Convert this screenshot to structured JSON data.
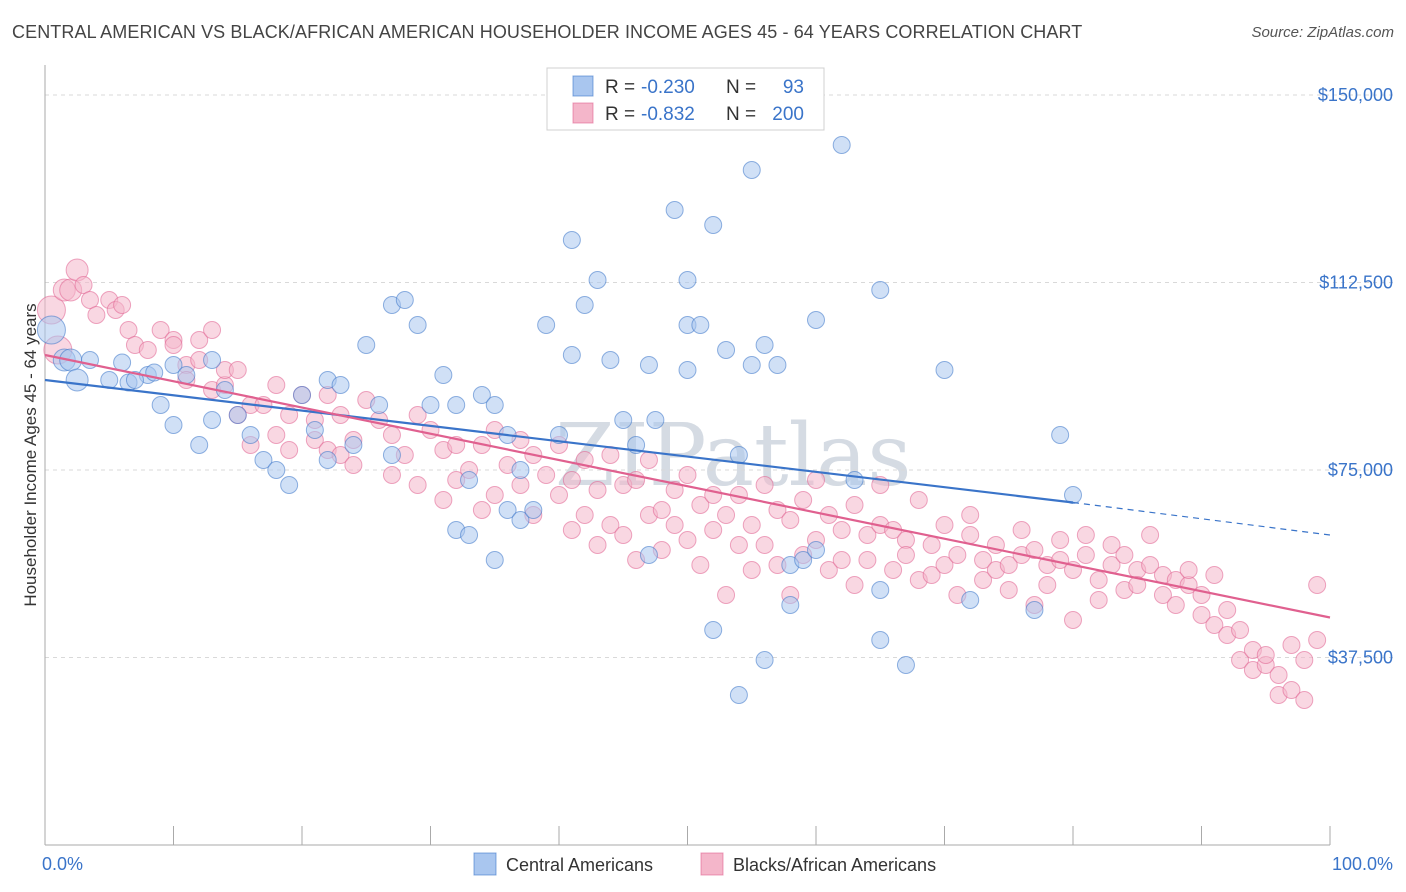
{
  "title": "CENTRAL AMERICAN VS BLACK/AFRICAN AMERICAN HOUSEHOLDER INCOME AGES 45 - 64 YEARS CORRELATION CHART",
  "source": "Source: ZipAtlas.com",
  "watermark": "ZIPatlas",
  "colors": {
    "blue": "#3a74c9",
    "blue_fill": "#a9c6ef",
    "pink": "#e0608f",
    "pink_fill": "#f4b6ca",
    "grid": "#d9d9d9"
  },
  "legend": {
    "rows": [
      {
        "r_label": "R =",
        "r_value": "-0.230",
        "n_label": "N =",
        "n_value": "93"
      },
      {
        "r_label": "R =",
        "r_value": "-0.832",
        "n_label": "N =",
        "n_value": "200"
      }
    ]
  },
  "chart_data": {
    "type": "scatter",
    "title": "CENTRAL AMERICAN VS BLACK/AFRICAN AMERICAN HOUSEHOLDER INCOME AGES 45 - 64 YEARS CORRELATION CHART",
    "xlabel": "",
    "ylabel": "Householder Income Ages 45 - 64 years",
    "xlim": [
      0,
      100
    ],
    "ylim": [
      0,
      155000
    ],
    "x_tick_labels": [
      "0.0%",
      "100.0%"
    ],
    "y_ticks": [
      37500,
      75000,
      112500,
      150000
    ],
    "y_tick_labels": [
      "$37,500",
      "$75,000",
      "$112,500",
      "$150,000"
    ],
    "grid": true,
    "legend_position": "top-center",
    "series": [
      {
        "name": "Central Americans",
        "color": "#3a74c9",
        "trend": {
          "x": [
            0,
            80
          ],
          "y": [
            93000,
            68500
          ],
          "dashed_to": [
            100,
            62000
          ]
        },
        "points": [
          [
            0.5,
            103000
          ],
          [
            1.5,
            97000
          ],
          [
            2,
            97000
          ],
          [
            2.5,
            93000
          ],
          [
            3.5,
            97000
          ],
          [
            5,
            93000
          ],
          [
            6,
            96500
          ],
          [
            6.5,
            92500
          ],
          [
            8,
            94000
          ],
          [
            7,
            93000
          ],
          [
            8.5,
            94500
          ],
          [
            9,
            88000
          ],
          [
            10,
            96000
          ],
          [
            11,
            94000
          ],
          [
            10,
            84000
          ],
          [
            12,
            80000
          ],
          [
            13,
            97000
          ],
          [
            13,
            85000
          ],
          [
            14,
            91000
          ],
          [
            15,
            86000
          ],
          [
            16,
            82000
          ],
          [
            17,
            77000
          ],
          [
            18,
            75000
          ],
          [
            19,
            72000
          ],
          [
            20,
            90000
          ],
          [
            21,
            83000
          ],
          [
            22,
            93000
          ],
          [
            22,
            77000
          ],
          [
            23,
            92000
          ],
          [
            24,
            80000
          ],
          [
            25,
            100000
          ],
          [
            26,
            88000
          ],
          [
            27,
            108000
          ],
          [
            27,
            78000
          ],
          [
            28,
            109000
          ],
          [
            29,
            104000
          ],
          [
            30,
            88000
          ],
          [
            31,
            94000
          ],
          [
            32,
            63000
          ],
          [
            32,
            88000
          ],
          [
            33,
            73000
          ],
          [
            33,
            62000
          ],
          [
            34,
            90000
          ],
          [
            35,
            88000
          ],
          [
            35,
            57000
          ],
          [
            36,
            67000
          ],
          [
            37,
            75000
          ],
          [
            37,
            65000
          ],
          [
            38,
            67000
          ],
          [
            39,
            104000
          ],
          [
            40,
            82000
          ],
          [
            41,
            121000
          ],
          [
            42,
            108000
          ],
          [
            43,
            113000
          ],
          [
            44,
            97000
          ],
          [
            45,
            85000
          ],
          [
            46,
            80000
          ],
          [
            47,
            96000
          ],
          [
            47,
            58000
          ],
          [
            49,
            127000
          ],
          [
            50,
            95000
          ],
          [
            50,
            113000
          ],
          [
            50,
            104000
          ],
          [
            51,
            104000
          ],
          [
            52,
            43000
          ],
          [
            52,
            124000
          ],
          [
            53,
            99000
          ],
          [
            54,
            78000
          ],
          [
            54,
            30000
          ],
          [
            55,
            135000
          ],
          [
            55,
            96000
          ],
          [
            56,
            37000
          ],
          [
            56,
            100000
          ],
          [
            57,
            96000
          ],
          [
            58,
            56000
          ],
          [
            58,
            48000
          ],
          [
            59,
            57000
          ],
          [
            60,
            59000
          ],
          [
            60,
            105000
          ],
          [
            62,
            140000
          ],
          [
            63,
            73000
          ],
          [
            65,
            111000
          ],
          [
            65,
            51000
          ],
          [
            65,
            41000
          ],
          [
            67,
            36000
          ],
          [
            70,
            95000
          ],
          [
            72,
            49000
          ],
          [
            77,
            47000
          ],
          [
            79,
            82000
          ],
          [
            80,
            70000
          ],
          [
            47.5,
            85000
          ],
          [
            41,
            98000
          ],
          [
            36,
            82000
          ]
        ]
      },
      {
        "name": "Blacks/African Americans",
        "color": "#e0608f",
        "trend": {
          "x": [
            0,
            100
          ],
          "y": [
            98000,
            45500
          ]
        },
        "points": [
          [
            0.5,
            107000
          ],
          [
            1,
            99000
          ],
          [
            1.5,
            111000
          ],
          [
            2,
            111000
          ],
          [
            2.5,
            115000
          ],
          [
            3,
            112000
          ],
          [
            3.5,
            109000
          ],
          [
            4,
            106000
          ],
          [
            5,
            109000
          ],
          [
            5.5,
            107000
          ],
          [
            6,
            108000
          ],
          [
            6.5,
            103000
          ],
          [
            7,
            100000
          ],
          [
            8,
            99000
          ],
          [
            9,
            103000
          ],
          [
            10,
            101000
          ],
          [
            10,
            100000
          ],
          [
            11,
            96000
          ],
          [
            11,
            93000
          ],
          [
            12,
            101000
          ],
          [
            12,
            97000
          ],
          [
            13,
            91000
          ],
          [
            13,
            103000
          ],
          [
            14,
            92000
          ],
          [
            14,
            95000
          ],
          [
            15,
            86000
          ],
          [
            15,
            95000
          ],
          [
            16,
            88000
          ],
          [
            16,
            80000
          ],
          [
            17,
            88000
          ],
          [
            18,
            92000
          ],
          [
            18,
            82000
          ],
          [
            19,
            86000
          ],
          [
            19,
            79000
          ],
          [
            20,
            90000
          ],
          [
            21,
            85000
          ],
          [
            21,
            81000
          ],
          [
            22,
            79000
          ],
          [
            22,
            90000
          ],
          [
            23,
            86000
          ],
          [
            23,
            78000
          ],
          [
            24,
            81000
          ],
          [
            24,
            76000
          ],
          [
            25,
            89000
          ],
          [
            26,
            85000
          ],
          [
            27,
            82000
          ],
          [
            27,
            74000
          ],
          [
            28,
            78000
          ],
          [
            29,
            86000
          ],
          [
            29,
            72000
          ],
          [
            30,
            83000
          ],
          [
            31,
            79000
          ],
          [
            31,
            69000
          ],
          [
            32,
            80000
          ],
          [
            32,
            73000
          ],
          [
            33,
            75000
          ],
          [
            34,
            80000
          ],
          [
            34,
            67000
          ],
          [
            35,
            70000
          ],
          [
            35,
            83000
          ],
          [
            36,
            76000
          ],
          [
            37,
            81000
          ],
          [
            37,
            72000
          ],
          [
            38,
            66000
          ],
          [
            38,
            78000
          ],
          [
            39,
            74000
          ],
          [
            40,
            80000
          ],
          [
            40,
            70000
          ],
          [
            41,
            63000
          ],
          [
            41,
            73000
          ],
          [
            42,
            77000
          ],
          [
            42,
            66000
          ],
          [
            43,
            71000
          ],
          [
            43,
            60000
          ],
          [
            44,
            78000
          ],
          [
            44,
            64000
          ],
          [
            45,
            72000
          ],
          [
            45,
            62000
          ],
          [
            46,
            73000
          ],
          [
            46,
            57000
          ],
          [
            47,
            77000
          ],
          [
            47,
            66000
          ],
          [
            48,
            67000
          ],
          [
            48,
            59000
          ],
          [
            49,
            71000
          ],
          [
            49,
            64000
          ],
          [
            50,
            74000
          ],
          [
            50,
            61000
          ],
          [
            51,
            68000
          ],
          [
            51,
            56000
          ],
          [
            52,
            70000
          ],
          [
            52,
            63000
          ],
          [
            53,
            66000
          ],
          [
            53,
            50000
          ],
          [
            54,
            70000
          ],
          [
            54,
            60000
          ],
          [
            55,
            64000
          ],
          [
            55,
            55000
          ],
          [
            56,
            72000
          ],
          [
            56,
            60000
          ],
          [
            57,
            67000
          ],
          [
            57,
            56000
          ],
          [
            58,
            65000
          ],
          [
            58,
            50000
          ],
          [
            59,
            69000
          ],
          [
            59,
            58000
          ],
          [
            60,
            61000
          ],
          [
            60,
            73000
          ],
          [
            61,
            66000
          ],
          [
            61,
            55000
          ],
          [
            62,
            63000
          ],
          [
            62,
            57000
          ],
          [
            63,
            68000
          ],
          [
            63,
            52000
          ],
          [
            64,
            62000
          ],
          [
            64,
            57000
          ],
          [
            65,
            64000
          ],
          [
            65,
            72000
          ],
          [
            66,
            63000
          ],
          [
            66,
            55000
          ],
          [
            67,
            61000
          ],
          [
            67,
            58000
          ],
          [
            68,
            69000
          ],
          [
            68,
            53000
          ],
          [
            69,
            60000
          ],
          [
            69,
            54000
          ],
          [
            70,
            64000
          ],
          [
            70,
            56000
          ],
          [
            71,
            58000
          ],
          [
            71,
            50000
          ],
          [
            72,
            62000
          ],
          [
            72,
            66000
          ],
          [
            73,
            57000
          ],
          [
            73,
            53000
          ],
          [
            74,
            60000
          ],
          [
            74,
            55000
          ],
          [
            75,
            56000
          ],
          [
            75,
            51000
          ],
          [
            76,
            63000
          ],
          [
            76,
            58000
          ],
          [
            77,
            59000
          ],
          [
            77,
            48000
          ],
          [
            78,
            56000
          ],
          [
            78,
            52000
          ],
          [
            79,
            61000
          ],
          [
            79,
            57000
          ],
          [
            80,
            55000
          ],
          [
            80,
            45000
          ],
          [
            81,
            62000
          ],
          [
            81,
            58000
          ],
          [
            82,
            53000
          ],
          [
            82,
            49000
          ],
          [
            83,
            60000
          ],
          [
            83,
            56000
          ],
          [
            84,
            51000
          ],
          [
            84,
            58000
          ],
          [
            85,
            55000
          ],
          [
            85,
            52000
          ],
          [
            86,
            56000
          ],
          [
            86,
            62000
          ],
          [
            87,
            50000
          ],
          [
            87,
            54000
          ],
          [
            88,
            53000
          ],
          [
            88,
            48000
          ],
          [
            89,
            52000
          ],
          [
            89,
            55000
          ],
          [
            90,
            50000
          ],
          [
            90,
            46000
          ],
          [
            91,
            54000
          ],
          [
            91,
            44000
          ],
          [
            92,
            47000
          ],
          [
            92,
            42000
          ],
          [
            93,
            43000
          ],
          [
            93,
            37000
          ],
          [
            94,
            39000
          ],
          [
            94,
            35000
          ],
          [
            95,
            36000
          ],
          [
            95,
            38000
          ],
          [
            96,
            34000
          ],
          [
            96,
            30000
          ],
          [
            97,
            31000
          ],
          [
            97,
            40000
          ],
          [
            98,
            37000
          ],
          [
            98,
            29000
          ],
          [
            99,
            41000
          ],
          [
            99,
            52000
          ]
        ]
      }
    ]
  },
  "bottom_legend": [
    {
      "label": "Central Americans",
      "color_key": "blue"
    },
    {
      "label": "Blacks/African Americans",
      "color_key": "pink"
    }
  ]
}
